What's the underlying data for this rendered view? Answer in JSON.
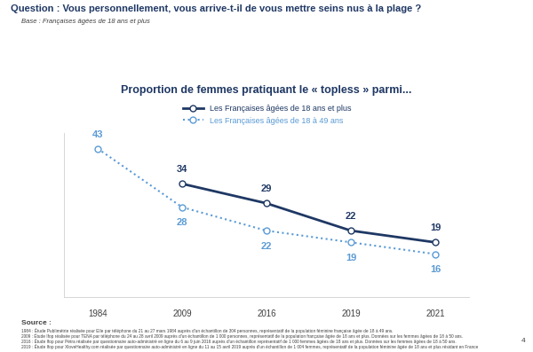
{
  "header": {
    "question": "Question : Vous personnellement, vous arrive-t-il de vous mettre seins nus à la plage ?",
    "base": "Base : Françaises âgées de 18 ans et plus"
  },
  "chart_data": {
    "type": "line",
    "title": "Proportion de femmes pratiquant le « topless » parmi...",
    "categories": [
      "1984",
      "2009",
      "2016",
      "2019",
      "2021"
    ],
    "series": [
      {
        "name": "Les Françaises âgées de 18 ans et plus",
        "color": "#1f3864",
        "marker": "circle",
        "line_style": "solid",
        "values": [
          null,
          34,
          29,
          22,
          19
        ]
      },
      {
        "name": "Les Françaises âgées de 18 à 49 ans",
        "color": "#5b9bd5",
        "marker": "circle",
        "line_style": "dotted",
        "values": [
          43,
          28,
          22,
          19,
          16
        ]
      }
    ],
    "ylim": [
      5,
      47
    ],
    "yticks": [],
    "tick_labels": "x",
    "legend": "upper left",
    "data_labels": true
  },
  "footer": {
    "source_title": "Source :",
    "sources": [
      "1984 : Étude Publimétrie réalisée pour Elle par téléphone du 21 au 27 mars 1984 auprès d'un échantillon de 304 personnes, représentatif de la population féminine française âgée de 18 à 49 ans.",
      "2009 : Étude Ifop réalisée pour TENA par téléphone du 24 au 28 avril 2009 auprès d'un échantillon de 1 000 personnes, représentatif de la population française âgée de 18 ans et plus. Données sur les femmes âgées de 18 à 50 ans.",
      "2016 : Étude Ifop pour Pétra réalisée par questionnaire auto-administré en ligne du 6 au 9 juin 2016 auprès d'un échantillon représentatif de 1 000 femmes âgées de 18 ans et plus. Données sur les femmes âgées de 18 à 50 ans.",
      "2019 : Étude Ifop pour XloveHealthy.com réalisée par questionnaire auto-administré en ligne du 11 au 15 avril 2019 auprès d'un échantillon de 1 004 femmes, représentatif de la population féminine âgée de 18 ans et plus résidant en France"
    ],
    "page": "4"
  }
}
